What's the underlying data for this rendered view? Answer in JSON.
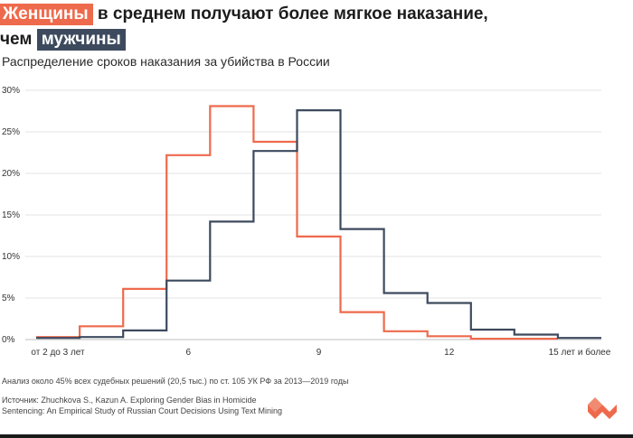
{
  "title": {
    "women": "Женщины",
    "part1": " в среднем получают более мягкое наказание,",
    "part2": "чем ",
    "men": "мужчины"
  },
  "subtitle": "Распределение сроков наказания за убийства в России",
  "note": "Анализ около 45% всех судебных решений (20,5 тыс.) по ст. 105 УК РФ за 2013—2019 годы",
  "source": {
    "line1": "Источник: Zhuchkova S., Kazun A. Exploring Gender Bias in Homicide",
    "line2": "Sentencing: An Empirical Study of Russian Court Decisions Using Text Mining"
  },
  "colors": {
    "women": "#ee6a4c",
    "men": "#3d4a5e",
    "grid": "#e3e3e3"
  },
  "chart_data": {
    "type": "line",
    "step": true,
    "title": "Распределение сроков наказания за убийства в России",
    "xlabel": "",
    "ylabel": "",
    "x_ticks": [
      {
        "value": 3,
        "label": "от 2 до 3 лет"
      },
      {
        "value": 6,
        "label": "6"
      },
      {
        "value": 9,
        "label": "9"
      },
      {
        "value": 12,
        "label": "12"
      },
      {
        "value": 15,
        "label": "15 лет и более"
      }
    ],
    "y_ticks": [
      {
        "value": 0,
        "label": "0%"
      },
      {
        "value": 5,
        "label": "5%"
      },
      {
        "value": 10,
        "label": "10%"
      },
      {
        "value": 15,
        "label": "15%"
      },
      {
        "value": 20,
        "label": "20%"
      },
      {
        "value": 25,
        "label": "25%"
      },
      {
        "value": 30,
        "label": "30%"
      }
    ],
    "ylim": [
      0,
      30
    ],
    "xlim": [
      2.5,
      15.5
    ],
    "grid": true,
    "series": [
      {
        "name": "Женщины",
        "bins": [
          [
            2.5,
            3.5,
            0.3
          ],
          [
            3.5,
            4.5,
            1.6
          ],
          [
            4.5,
            5.5,
            6.1
          ],
          [
            5.5,
            6.5,
            22.2
          ],
          [
            6.5,
            7.5,
            28.1
          ],
          [
            7.5,
            8.5,
            23.8
          ],
          [
            8.5,
            9.5,
            12.4
          ],
          [
            9.5,
            10.5,
            3.3
          ],
          [
            10.5,
            11.5,
            1.0
          ],
          [
            11.5,
            12.5,
            0.4
          ],
          [
            12.5,
            13.5,
            0.1
          ],
          [
            13.5,
            14.5,
            0.1
          ]
        ]
      },
      {
        "name": "Мужчины",
        "bins": [
          [
            2.5,
            3.5,
            0.2
          ],
          [
            3.5,
            4.5,
            0.3
          ],
          [
            4.5,
            5.5,
            1.1
          ],
          [
            5.5,
            6.5,
            7.1
          ],
          [
            6.5,
            7.5,
            14.2
          ],
          [
            7.5,
            8.5,
            22.7
          ],
          [
            8.5,
            9.5,
            27.6
          ],
          [
            9.5,
            10.5,
            13.3
          ],
          [
            10.5,
            11.5,
            5.6
          ],
          [
            11.5,
            12.5,
            4.4
          ],
          [
            12.5,
            13.5,
            1.2
          ],
          [
            13.5,
            14.5,
            0.6
          ],
          [
            14.5,
            15.5,
            0.2
          ]
        ]
      }
    ]
  }
}
